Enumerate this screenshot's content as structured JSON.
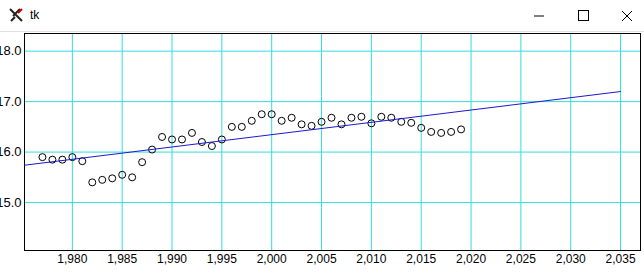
{
  "chart_data": {
    "type": "scatter",
    "title": "tk",
    "grid": true,
    "xlim": [
      1975.2,
      2037
    ],
    "ylim": [
      14.05,
      18.35
    ],
    "xticks": [
      1980,
      1985,
      1990,
      1995,
      2000,
      2005,
      2010,
      2015,
      2020,
      2025,
      2030,
      2035
    ],
    "yticks": [
      15,
      16,
      17,
      18
    ],
    "series": [
      {
        "type": "scatter",
        "marker": "circle",
        "color": "#000000",
        "x": [
          1977,
          1978,
          1979,
          1980,
          1981,
          1982,
          1983,
          1984,
          1985,
          1986,
          1987,
          1988,
          1989,
          1990,
          1991,
          1992,
          1993,
          1994,
          1995,
          1996,
          1997,
          1998,
          1999,
          2000,
          2001,
          2002,
          2003,
          2004,
          2005,
          2006,
          2007,
          2008,
          2009,
          2010,
          2011,
          2012,
          2013,
          2014,
          2015,
          2016,
          2017,
          2018,
          2019
        ],
        "values": [
          15.9,
          15.85,
          15.85,
          15.9,
          15.82,
          15.4,
          15.45,
          15.48,
          15.55,
          15.5,
          15.8,
          16.05,
          16.3,
          16.25,
          16.25,
          16.38,
          16.2,
          16.12,
          16.25,
          16.5,
          16.5,
          16.62,
          16.75,
          16.75,
          16.62,
          16.68,
          16.55,
          16.52,
          16.6,
          16.68,
          16.55,
          16.68,
          16.7,
          16.57,
          16.7,
          16.68,
          16.6,
          16.58,
          16.48,
          16.4,
          16.38,
          16.4,
          16.45
        ]
      },
      {
        "type": "line",
        "line_style": "solid",
        "color": "#1a1acc",
        "x": [
          1975.2,
          2035
        ],
        "values": [
          15.74,
          17.2
        ]
      }
    ]
  }
}
